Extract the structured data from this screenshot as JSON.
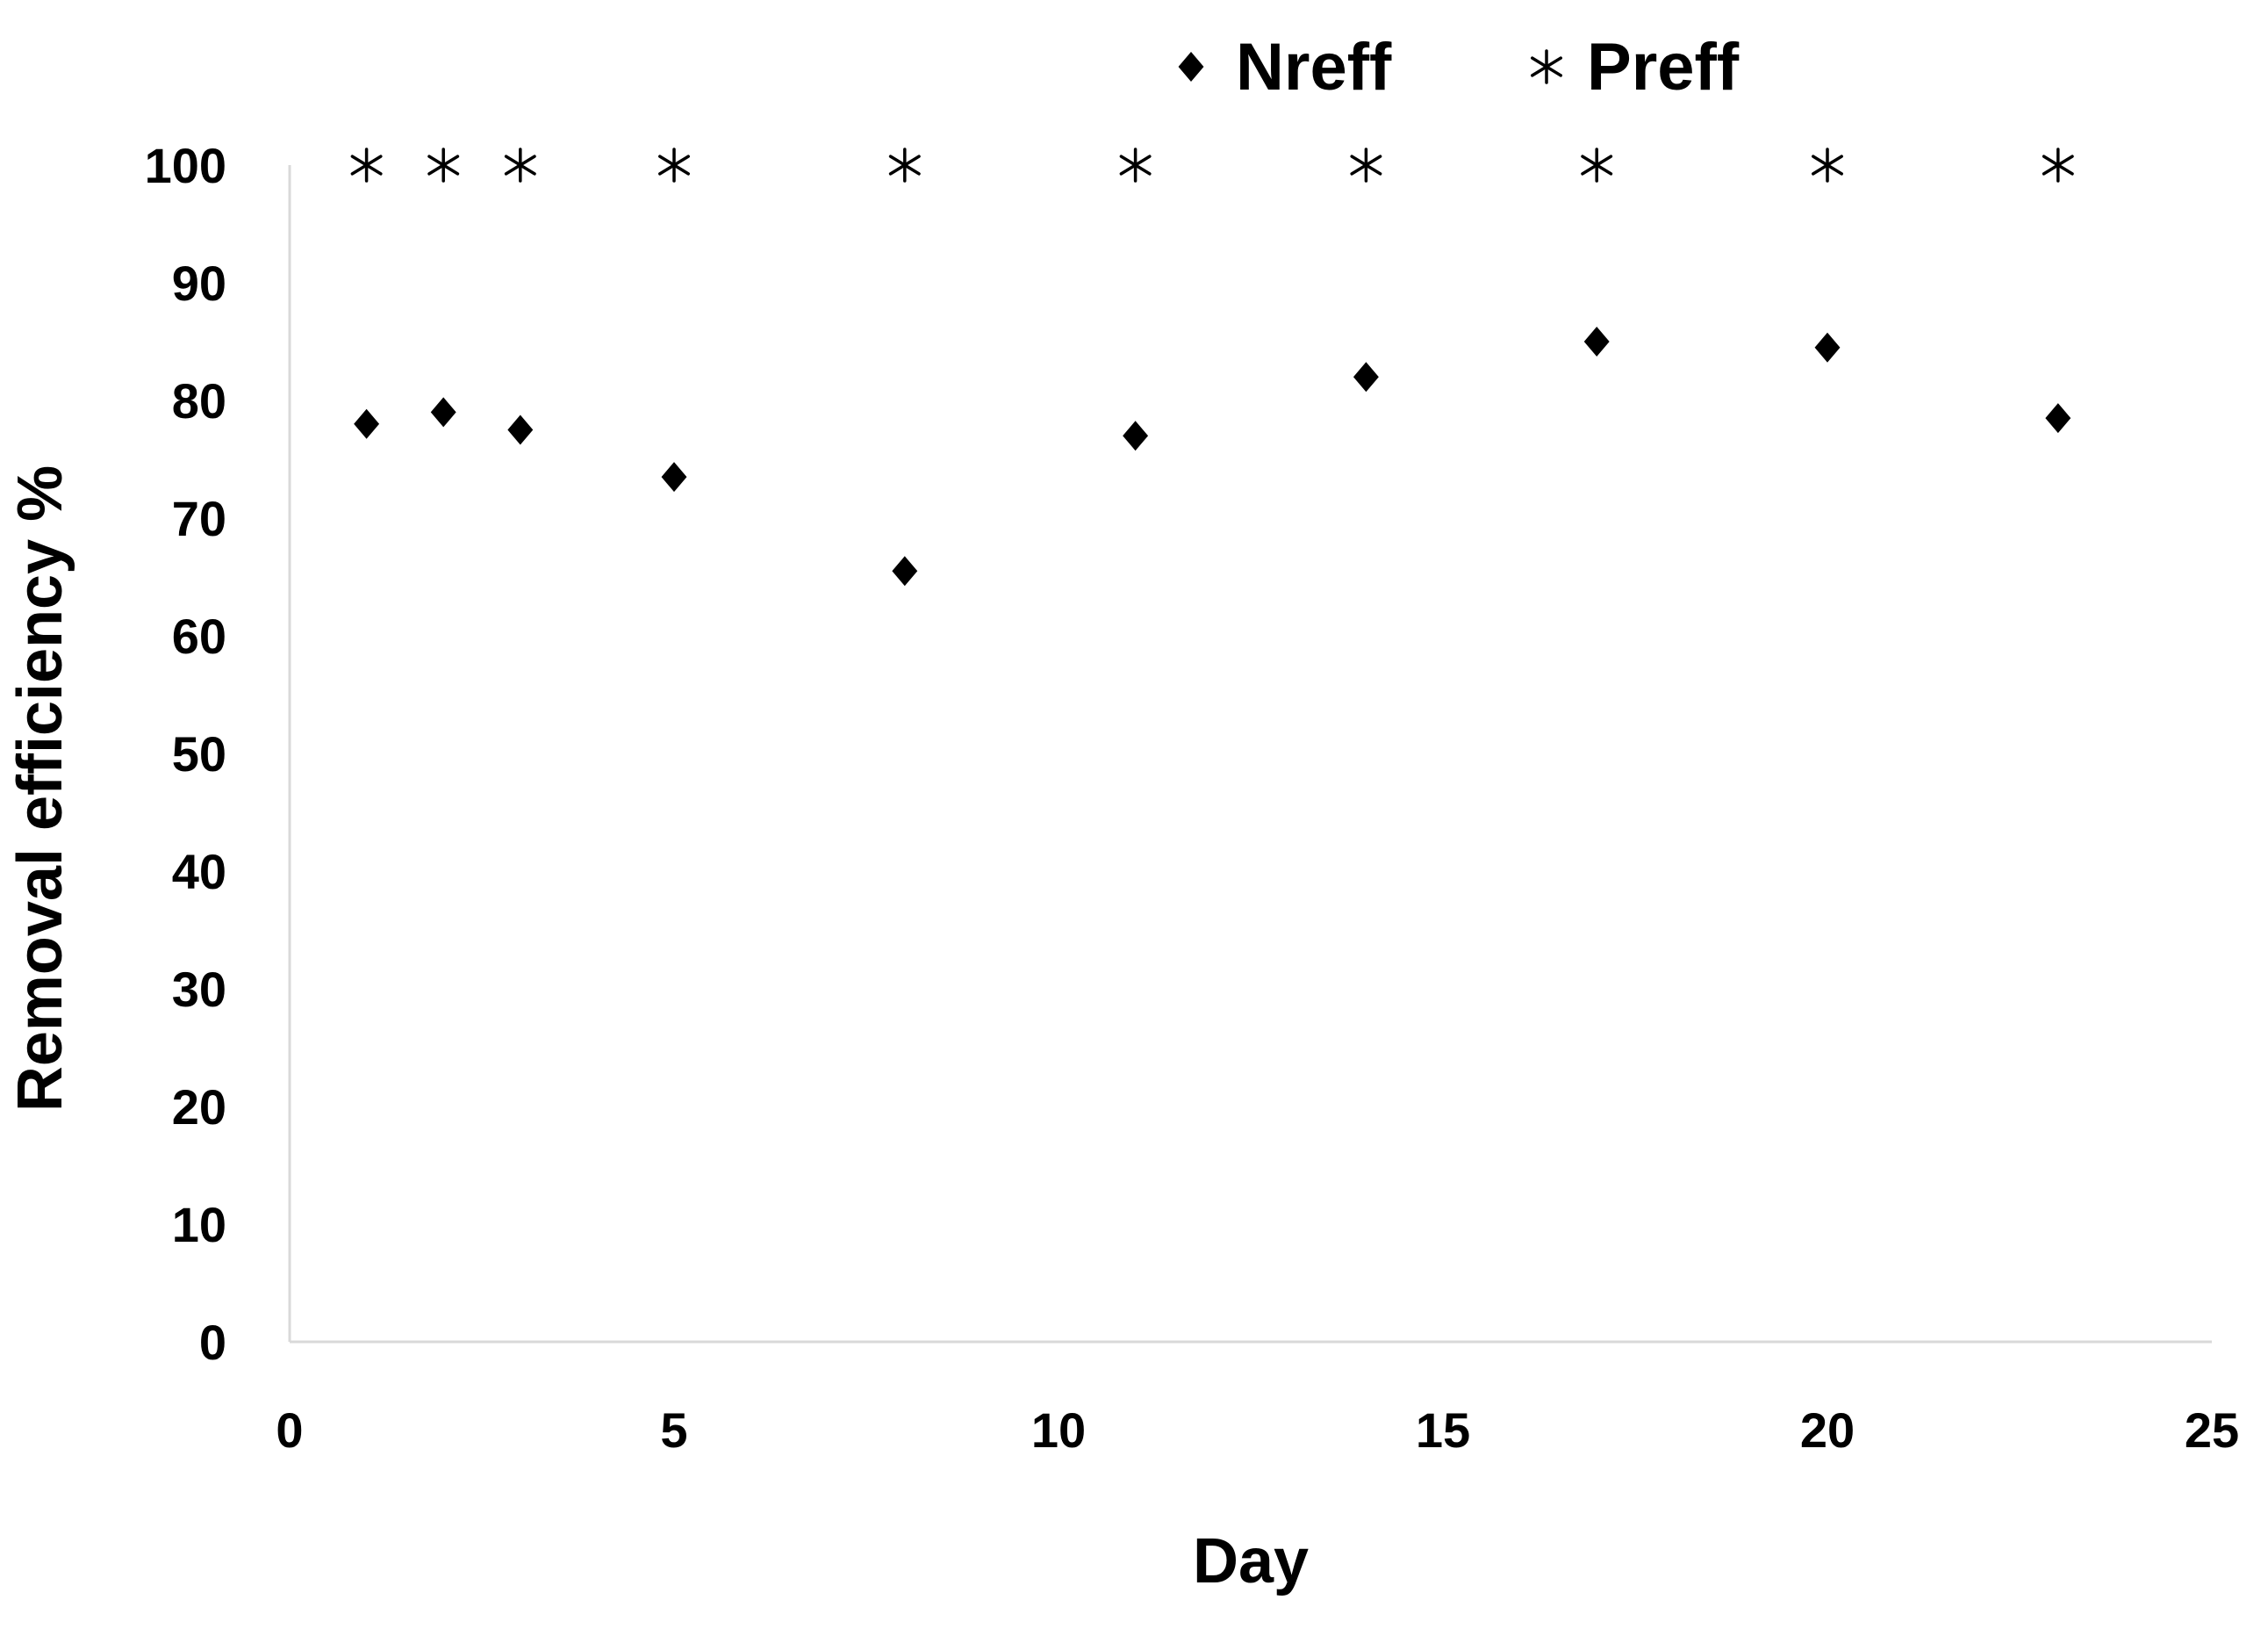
{
  "chart_data": {
    "type": "scatter",
    "title": "",
    "xlabel": "Day",
    "ylabel": "Removal efficiency %",
    "xlim": [
      0,
      25
    ],
    "ylim": [
      0,
      100
    ],
    "xticks": [
      0,
      5,
      10,
      15,
      20,
      25
    ],
    "yticks": [
      0,
      10,
      20,
      30,
      40,
      50,
      60,
      70,
      80,
      90,
      100
    ],
    "grid": false,
    "legend_position": "top",
    "series": [
      {
        "name": "Nreff",
        "marker": "diamond",
        "color": "#000000",
        "x": [
          1,
          2,
          3,
          5,
          8,
          11,
          14,
          17,
          20,
          23
        ],
        "y": [
          78,
          79,
          77.5,
          73.5,
          65.5,
          77,
          82,
          85,
          84.5,
          78.5
        ]
      },
      {
        "name": "Preff",
        "marker": "asterisk",
        "color": "#000000",
        "x": [
          1,
          2,
          3,
          5,
          8,
          11,
          14,
          17,
          20,
          23
        ],
        "y": [
          100,
          100,
          100,
          100,
          100,
          100,
          100,
          100,
          100,
          100
        ]
      }
    ]
  }
}
